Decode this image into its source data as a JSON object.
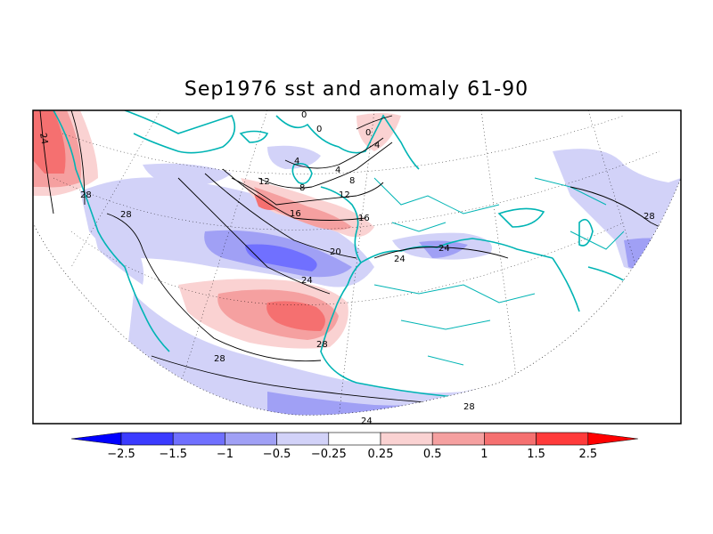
{
  "title": "Sep1976 sst and anomaly 61-90",
  "colorbar": {
    "colors": [
      "#0000ff",
      "#3b3bff",
      "#7070ff",
      "#a0a0f5",
      "#d2d2f8",
      "#ffffff",
      "#fad2d2",
      "#f5a0a0",
      "#f57070",
      "#ff3b3b",
      "#ff0000"
    ],
    "tick_labels": [
      "−2.5",
      "−1.5",
      "−1",
      "−0.5",
      "−0.25",
      "0.25",
      "0.5",
      "1",
      "1.5",
      "2.5"
    ]
  },
  "contour_labels": [
    "24",
    "28",
    "28",
    "0",
    "0",
    "4",
    "0",
    "4",
    "8",
    "4",
    "8",
    "12",
    "16",
    "12",
    "16",
    "20",
    "24",
    "24",
    "24",
    "28",
    "28",
    "28",
    "24",
    "28"
  ],
  "colors": {
    "coast": "#00b4b4",
    "contour": "#000000"
  }
}
